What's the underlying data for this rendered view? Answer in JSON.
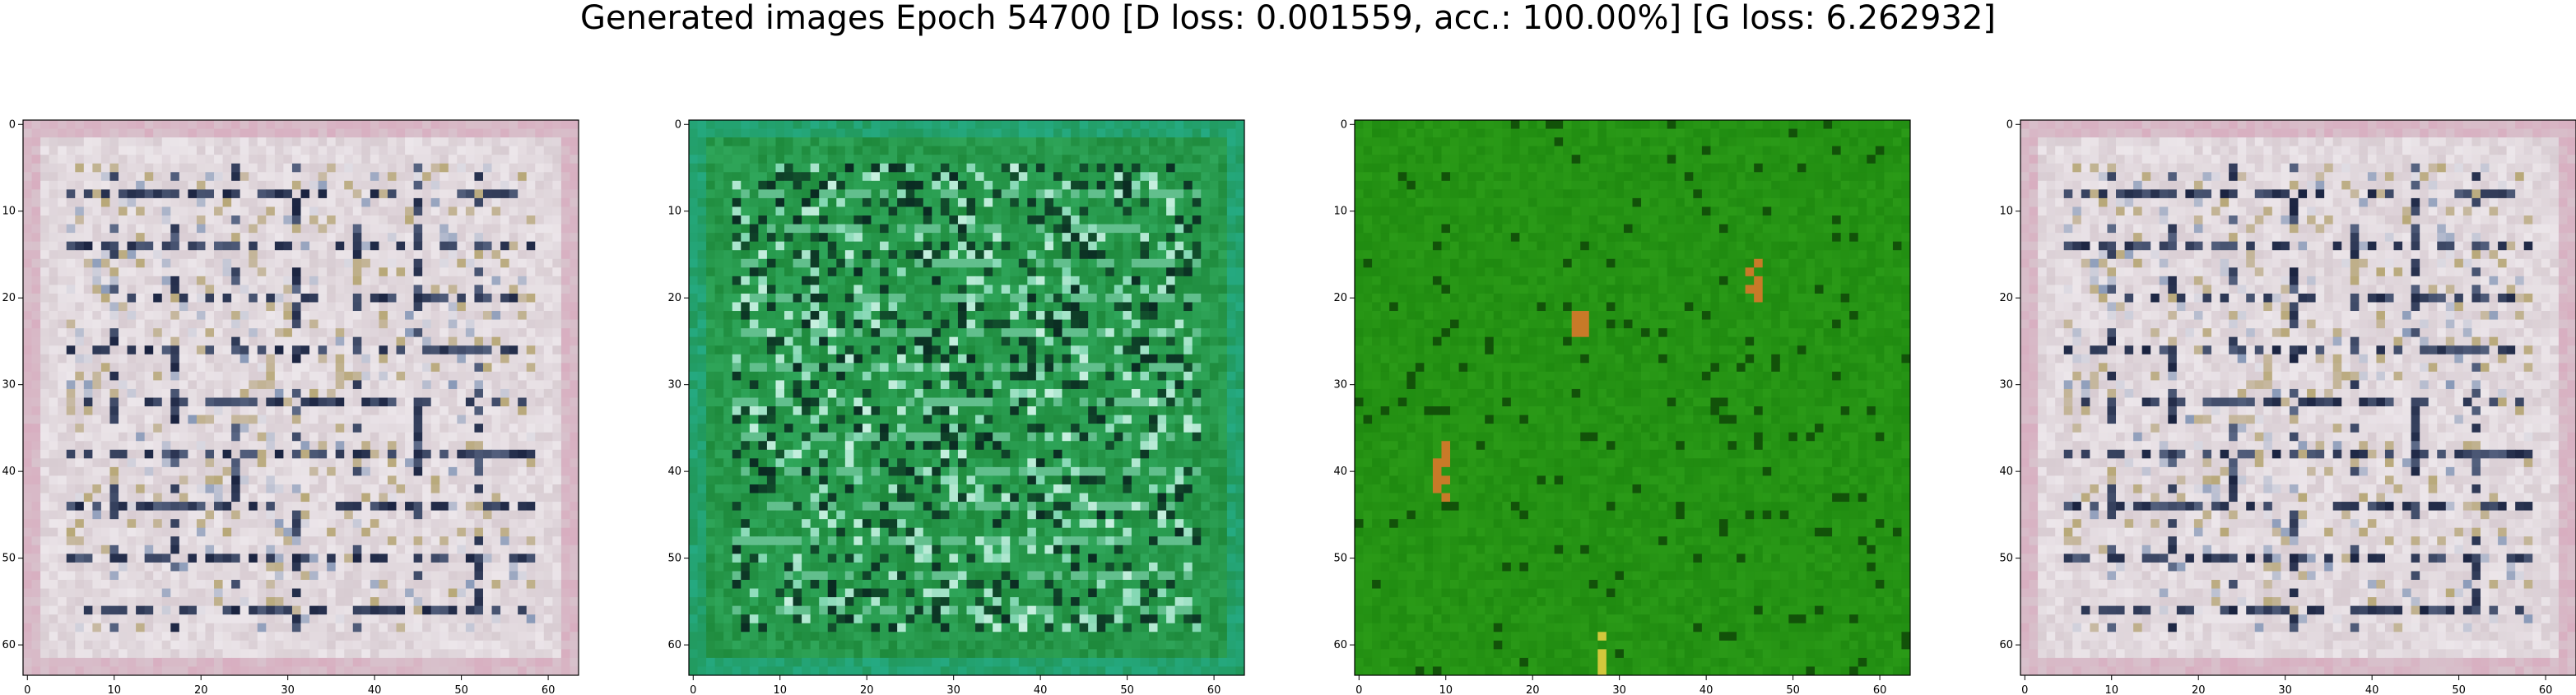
{
  "figure": {
    "title": "Generated images Epoch 54700 [D loss: 0.001559, acc.: 100.00%] [G loss: 6.262932]"
  },
  "panels": [
    {
      "id": "panel-1",
      "x_ticks": [
        "0",
        "10",
        "20",
        "30",
        "40",
        "50",
        "60"
      ],
      "y_ticks": [
        "0",
        "10",
        "20",
        "30",
        "40",
        "50",
        "60"
      ],
      "palette": {
        "base": "#d8ccd2",
        "light": "#ece6ea",
        "dark": "#1a2340",
        "mid": "#8a9ab8",
        "accent": "#b8a878",
        "edge": "#d89ab4"
      }
    },
    {
      "id": "panel-2",
      "x_ticks": [
        "0",
        "10",
        "20",
        "30",
        "40",
        "50",
        "60"
      ],
      "y_ticks": [
        "0",
        "10",
        "20",
        "30",
        "40",
        "50",
        "60"
      ],
      "palette": {
        "base": "#1e8a3c",
        "light": "#7fd6b0",
        "dark": "#0a2a22",
        "mid": "#2fa65a",
        "accent": "#c8f0e0",
        "edge": "#28b8a0"
      }
    },
    {
      "id": "panel-3",
      "x_ticks": [
        "0",
        "10",
        "20",
        "30",
        "40",
        "50",
        "60"
      ],
      "y_ticks": [
        "0",
        "10",
        "20",
        "30",
        "40",
        "50",
        "60"
      ],
      "palette": {
        "base": "#1f8a10",
        "light": "#34a81e",
        "dark": "#0c3a06",
        "mid": "#258f14",
        "accent": "#c87a28",
        "edge": "#2a9a18"
      }
    },
    {
      "id": "panel-4",
      "x_ticks": [
        "0",
        "10",
        "20",
        "30",
        "40",
        "50",
        "60"
      ],
      "y_ticks": [
        "0",
        "10",
        "20",
        "30",
        "40",
        "50",
        "60"
      ],
      "palette": {
        "base": "#d8ccd2",
        "light": "#ece6ea",
        "dark": "#1a2340",
        "mid": "#8a9ab8",
        "accent": "#b8a878",
        "edge": "#d89ab4"
      }
    }
  ]
}
